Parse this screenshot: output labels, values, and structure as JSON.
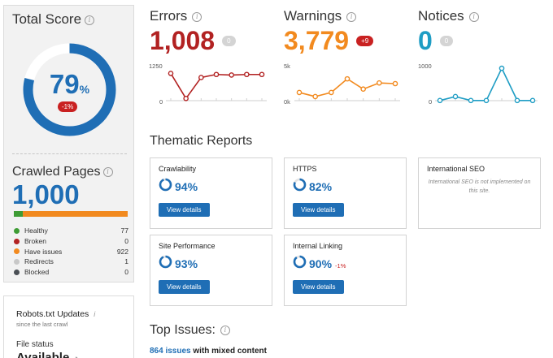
{
  "total_score": {
    "title": "Total Score",
    "value": "79",
    "unit": "%",
    "progress": 0.79,
    "delta": "-1%"
  },
  "crawled_pages": {
    "title": "Crawled Pages",
    "value": "1,000",
    "legend": [
      {
        "label": "Healthy",
        "count": "77",
        "color": "#3e9c35"
      },
      {
        "label": "Broken",
        "count": "0",
        "color": "#b22222"
      },
      {
        "label": "Have issues",
        "count": "922",
        "color": "#f28a1f"
      },
      {
        "label": "Redirects",
        "count": "1",
        "color": "#c8c8c8"
      },
      {
        "label": "Blocked",
        "count": "0",
        "color": "#4a4f55"
      }
    ]
  },
  "robots": {
    "title": "Robots.txt Updates",
    "info_glyph": "i",
    "subtitle": "since the last crawl",
    "file_status_label": "File status",
    "file_status_value": "Available"
  },
  "metrics": {
    "errors": {
      "title": "Errors",
      "value": "1,008",
      "badge": "0",
      "color": "#b22222",
      "axis_max": "1250",
      "axis_min": "0",
      "series": [
        1000,
        80,
        850,
        960,
        940,
        960,
        960
      ],
      "ymax": 1250
    },
    "warnings": {
      "title": "Warnings",
      "value": "3,779",
      "badge": "+9",
      "color": "#f28a1f",
      "axis_max": "5k",
      "axis_min": "0k",
      "series": [
        1200,
        600,
        1200,
        3200,
        1700,
        2600,
        2500
      ],
      "ymax": 5000
    },
    "notices": {
      "title": "Notices",
      "value": "0",
      "badge": "0",
      "color": "#1f9dc4",
      "axis_max": "1000",
      "axis_min": "0",
      "series": [
        5,
        120,
        5,
        5,
        950,
        5,
        5
      ],
      "ymax": 1000
    }
  },
  "thematic": {
    "title": "Thematic Reports",
    "button_label": "View details",
    "ring_color": "#1f6eb5",
    "cards": [
      {
        "title": "Crawlability",
        "value": "94%",
        "progress": 0.94
      },
      {
        "title": "HTTPS",
        "value": "82%",
        "progress": 0.82
      },
      {
        "title": "International SEO",
        "note": "International SEO is not implemented on this site."
      },
      {
        "title": "Site Performance",
        "value": "93%",
        "progress": 0.93
      },
      {
        "title": "Internal Linking",
        "value": "90%",
        "progress": 0.9,
        "delta": "-1%"
      }
    ]
  },
  "top_issues": {
    "title": "Top Issues:",
    "first_issue_link": "864 issues",
    "first_issue_text": "with mixed content"
  }
}
